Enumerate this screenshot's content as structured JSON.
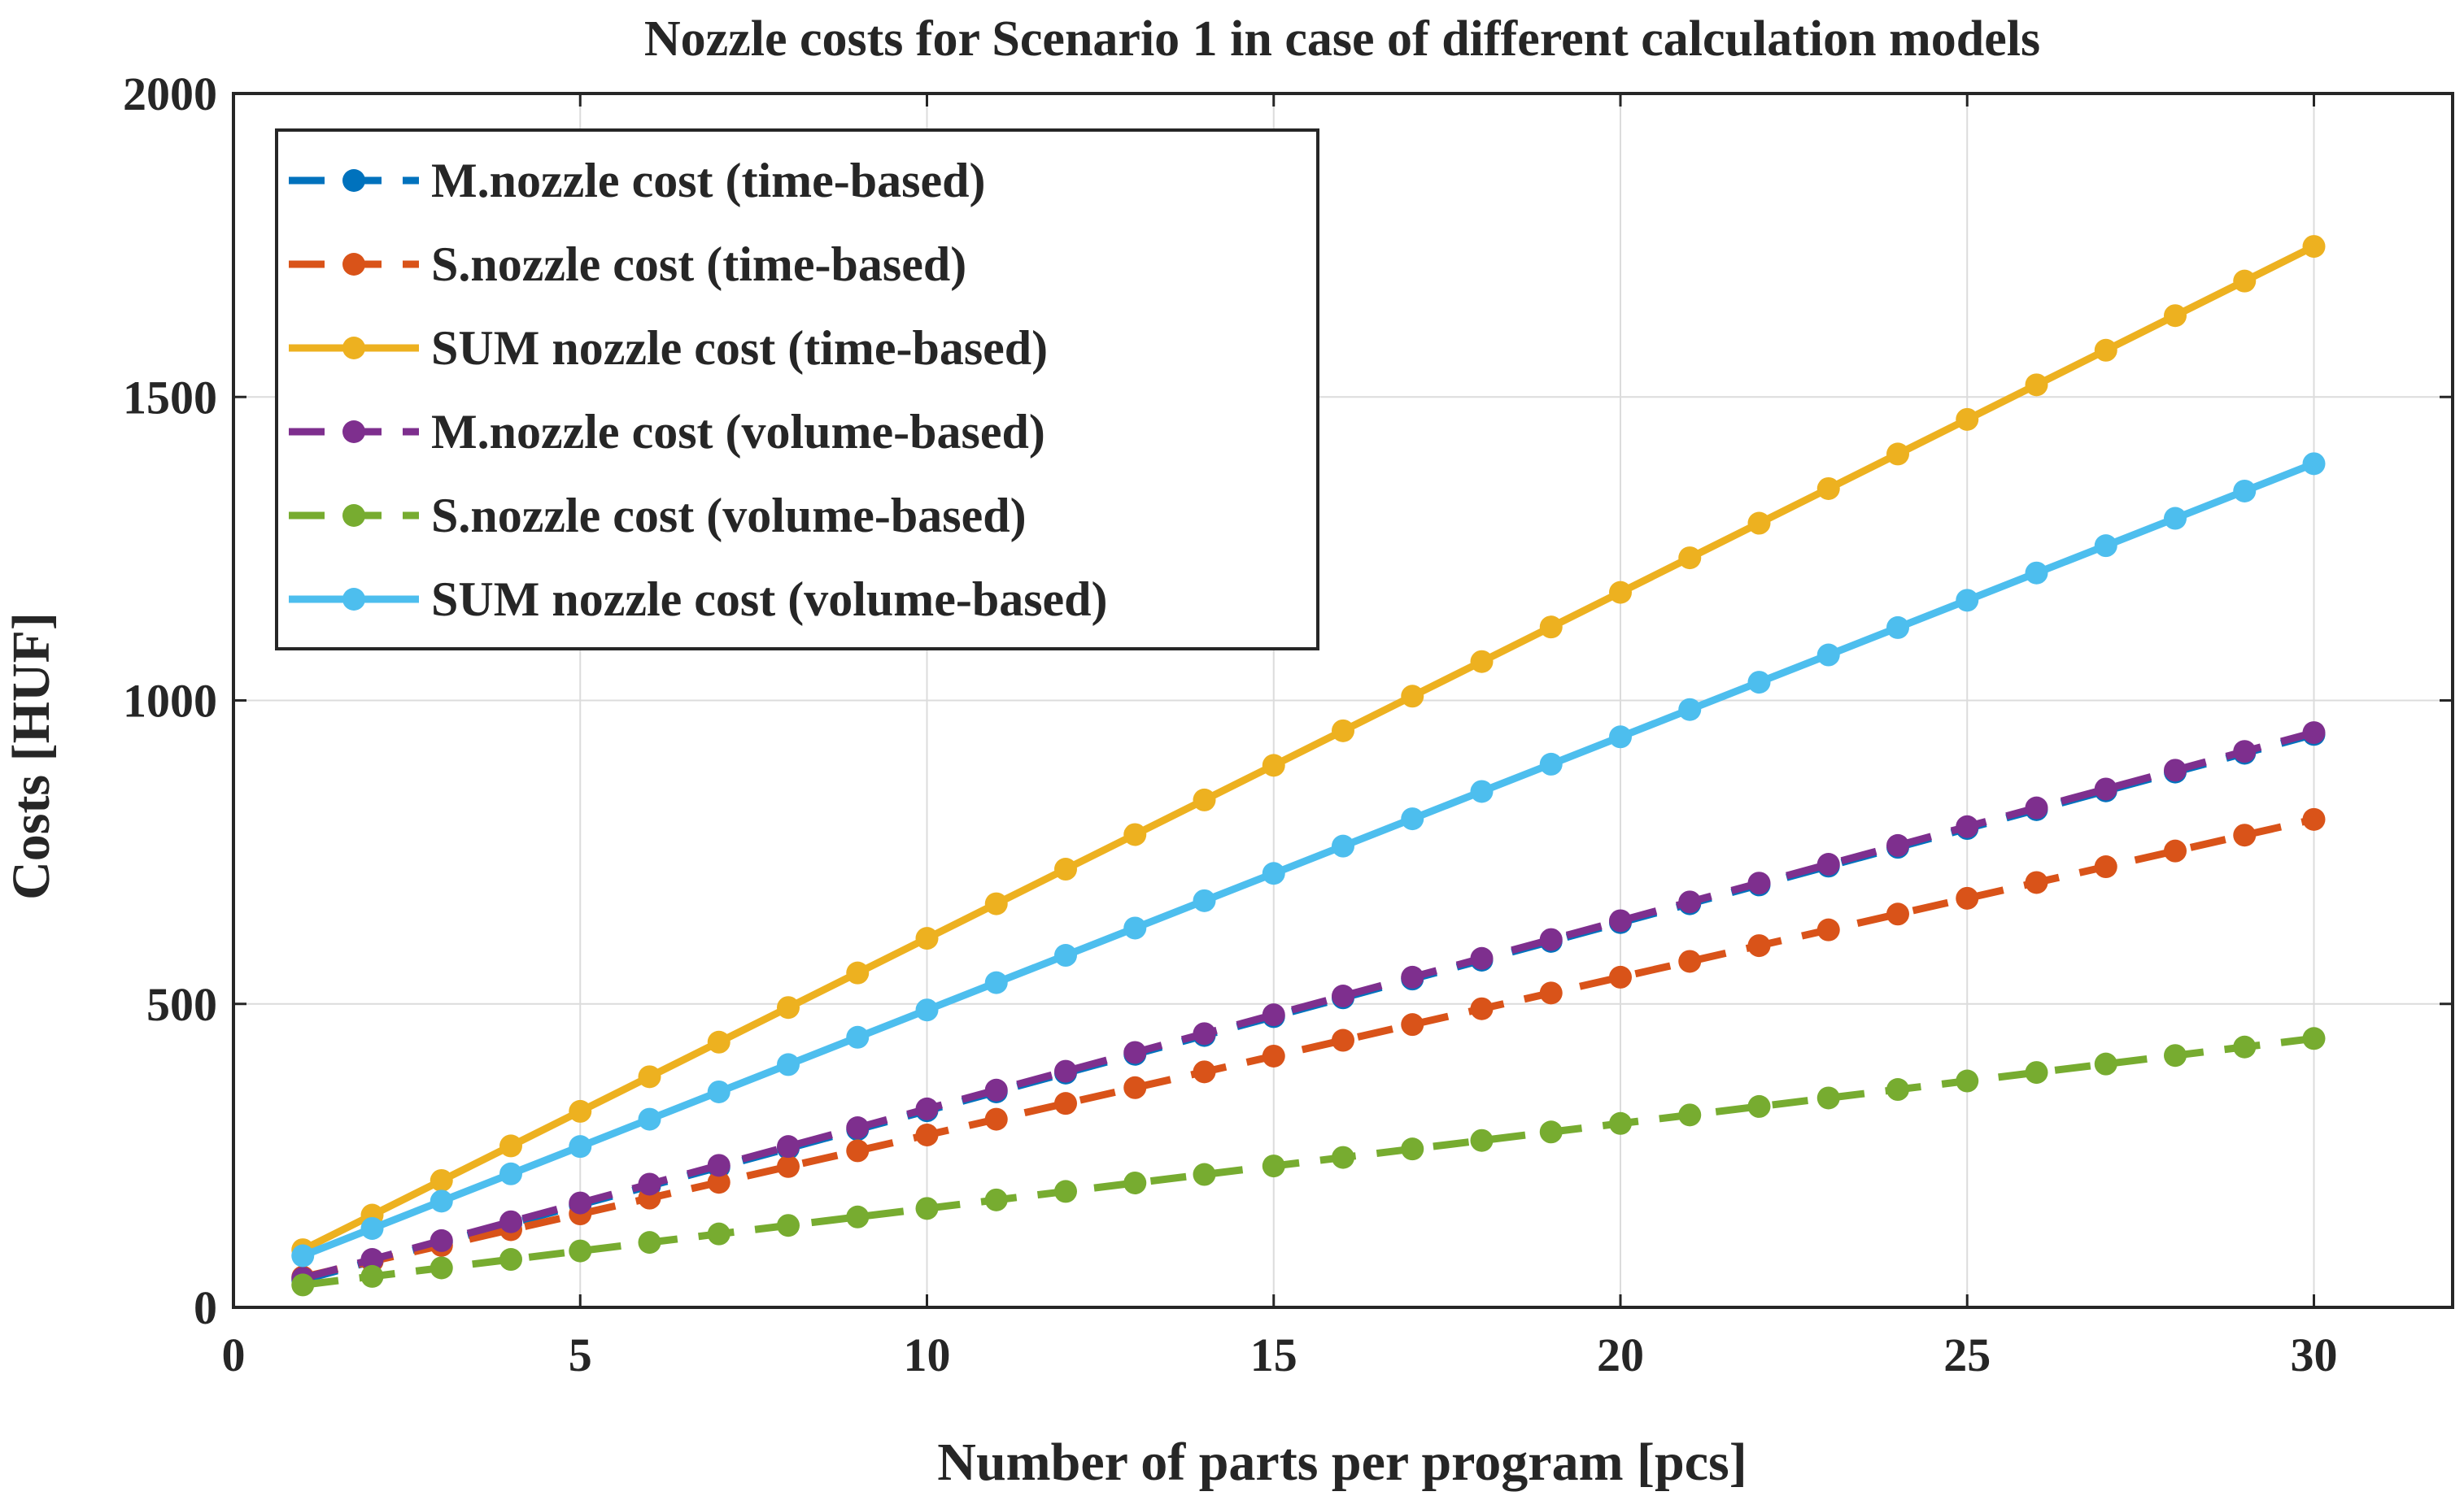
{
  "chart_data": {
    "type": "line",
    "title": "Nozzle costs for Scenario 1 in case of different calculation models",
    "xlabel": "Number of parts per program [pcs]",
    "ylabel": "Costs [HUF]",
    "xlim": [
      0,
      32
    ],
    "ylim": [
      0,
      2000
    ],
    "xticks": [
      0,
      5,
      10,
      15,
      20,
      25,
      30
    ],
    "yticks": [
      0,
      500,
      1000,
      1500,
      2000
    ],
    "grid": true,
    "legend_position": "top-left",
    "x": [
      1,
      2,
      3,
      4,
      5,
      6,
      7,
      8,
      9,
      10,
      11,
      12,
      13,
      14,
      15,
      16,
      17,
      18,
      19,
      20,
      21,
      22,
      23,
      24,
      25,
      26,
      27,
      28,
      29,
      30
    ],
    "series": [
      {
        "name": "M.nozzle cost (time-based)",
        "color": "#0072BD",
        "style": "dashed",
        "values": [
          45,
          76,
          107,
          138,
          169,
          200,
          231,
          262,
          293,
          324,
          355,
          386,
          417,
          448,
          479,
          510,
          541,
          572,
          603,
          634,
          665,
          696,
          727,
          758,
          789,
          820,
          851,
          882,
          913,
          944
        ]
      },
      {
        "name": "S.nozzle cost (time-based)",
        "color": "#D95319",
        "style": "dashed",
        "values": [
          50,
          76,
          102,
          128,
          154,
          180,
          206,
          232,
          258,
          284,
          310,
          336,
          362,
          388,
          414,
          440,
          466,
          492,
          518,
          544,
          570,
          596,
          622,
          648,
          674,
          700,
          726,
          752,
          778,
          804
        ]
      },
      {
        "name": "SUM nozzle cost (time-based)",
        "color": "#EDB120",
        "style": "solid",
        "values": [
          95,
          152,
          209,
          266,
          323,
          380,
          437,
          494,
          551,
          608,
          665,
          722,
          779,
          836,
          893,
          950,
          1007,
          1064,
          1121,
          1178,
          1235,
          1292,
          1349,
          1406,
          1463,
          1520,
          1577,
          1634,
          1691,
          1748
        ]
      },
      {
        "name": "M.nozzle cost (volume-based)",
        "color": "#7E2F8E",
        "style": "dashed",
        "values": [
          48,
          79,
          110,
          141,
          172,
          203,
          234,
          265,
          296,
          327,
          358,
          389,
          420,
          451,
          482,
          513,
          544,
          575,
          606,
          637,
          668,
          699,
          730,
          761,
          792,
          823,
          854,
          885,
          916,
          947
        ]
      },
      {
        "name": "S.nozzle cost (volume-based)",
        "color": "#77AC30",
        "style": "dashed",
        "values": [
          37,
          51,
          65,
          79,
          93,
          107,
          121,
          135,
          149,
          163,
          177,
          191,
          205,
          219,
          233,
          247,
          261,
          275,
          289,
          303,
          317,
          331,
          345,
          359,
          373,
          387,
          401,
          415,
          429,
          443
        ]
      },
      {
        "name": "SUM nozzle cost (volume-based)",
        "color": "#4DBEEE",
        "style": "solid",
        "values": [
          85,
          130,
          175,
          220,
          265,
          310,
          355,
          400,
          445,
          490,
          535,
          580,
          625,
          670,
          715,
          760,
          805,
          850,
          895,
          940,
          985,
          1030,
          1075,
          1120,
          1165,
          1210,
          1255,
          1300,
          1345,
          1390
        ]
      }
    ]
  }
}
